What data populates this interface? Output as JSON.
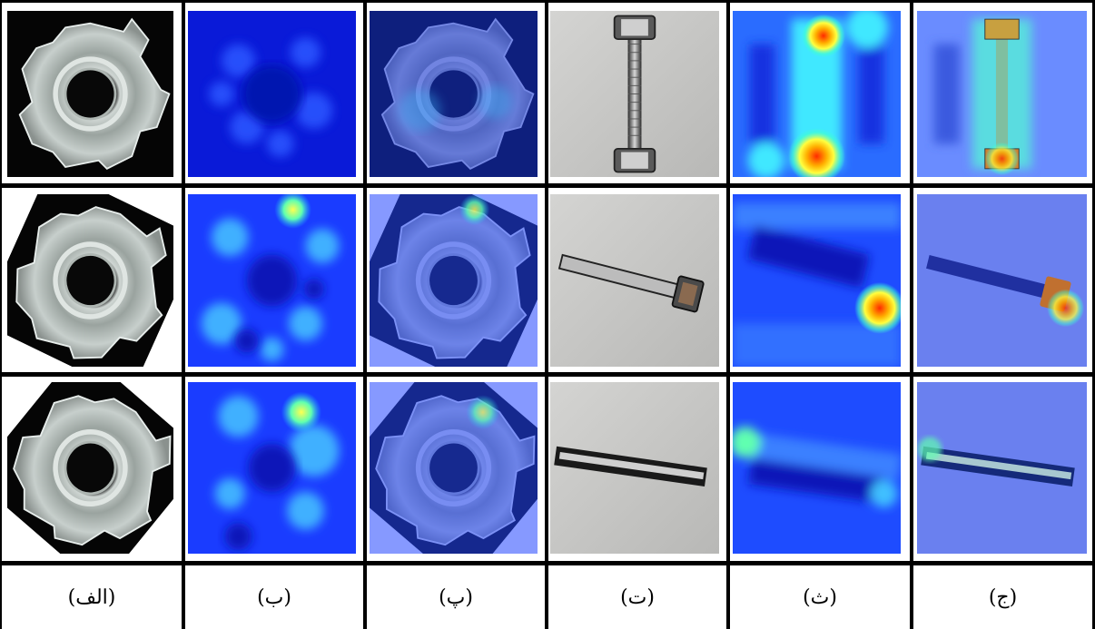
{
  "figure": {
    "captions": [
      "(الف)",
      "(ب)",
      "(پ)",
      "(ت)",
      "(ث)",
      "(ج)"
    ],
    "columns": [
      {
        "content": "metal nut photo"
      },
      {
        "content": "heatmap"
      },
      {
        "content": "heatmap overlay on nut"
      },
      {
        "content": "screw photo"
      },
      {
        "content": "heatmap"
      },
      {
        "content": "heatmap overlay on screw"
      }
    ]
  }
}
